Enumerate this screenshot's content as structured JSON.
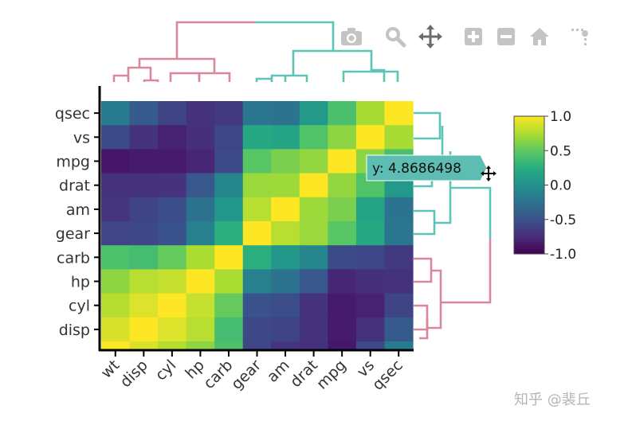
{
  "chart_data": {
    "type": "heatmap",
    "title": "",
    "xlabel": "",
    "ylabel": "",
    "x_categories": [
      "wt",
      "disp",
      "cyl",
      "hp",
      "carb",
      "gear",
      "am",
      "drat",
      "mpg",
      "vs",
      "qsec"
    ],
    "y_categories": [
      "disp",
      "cyl",
      "hp",
      "carb",
      "gear",
      "am",
      "drat",
      "mpg",
      "vs",
      "qsec"
    ],
    "rows": [
      {
        "label": "qsec",
        "values": [
          -0.17,
          -0.43,
          -0.59,
          -0.71,
          -0.66,
          -0.21,
          -0.23,
          0.09,
          0.42,
          0.74,
          1.0
        ]
      },
      {
        "label": "vs",
        "values": [
          -0.55,
          -0.71,
          -0.81,
          -0.72,
          -0.57,
          0.21,
          0.17,
          0.44,
          0.66,
          1.0,
          0.74
        ]
      },
      {
        "label": "mpg",
        "values": [
          -0.87,
          -0.85,
          -0.85,
          -0.78,
          -0.55,
          0.48,
          0.6,
          0.68,
          1.0,
          0.66,
          0.42
        ]
      },
      {
        "label": "drat",
        "values": [
          -0.71,
          -0.71,
          -0.7,
          -0.45,
          -0.09,
          0.7,
          0.71,
          1.0,
          0.68,
          0.44,
          0.09
        ]
      },
      {
        "label": "am",
        "values": [
          -0.69,
          -0.59,
          -0.52,
          -0.24,
          0.06,
          0.79,
          1.0,
          0.71,
          0.6,
          0.17,
          -0.23
        ]
      },
      {
        "label": "gear",
        "values": [
          -0.58,
          -0.56,
          -0.49,
          -0.13,
          0.27,
          1.0,
          0.79,
          0.7,
          0.48,
          0.21,
          -0.21
        ]
      },
      {
        "label": "carb",
        "values": [
          0.43,
          0.39,
          0.53,
          0.75,
          1.0,
          0.27,
          0.06,
          -0.09,
          -0.55,
          -0.57,
          -0.66
        ]
      },
      {
        "label": "hp",
        "values": [
          0.66,
          0.79,
          0.83,
          1.0,
          0.75,
          -0.13,
          -0.24,
          -0.45,
          -0.78,
          -0.72,
          -0.71
        ]
      },
      {
        "label": "cyl",
        "values": [
          0.78,
          0.9,
          1.0,
          0.83,
          0.53,
          -0.49,
          -0.52,
          -0.7,
          -0.85,
          -0.81,
          -0.59
        ]
      },
      {
        "label": "disp",
        "values": [
          0.89,
          1.0,
          0.9,
          0.79,
          0.39,
          -0.56,
          -0.59,
          -0.71,
          -0.85,
          -0.71,
          -0.43
        ]
      },
      {
        "label": "",
        "values": [
          1.0,
          0.89,
          0.78,
          0.66,
          0.43,
          -0.58,
          -0.69,
          -0.71,
          -0.87,
          -0.55,
          -0.17
        ]
      }
    ],
    "zlim": [
      -1.0,
      1.0
    ],
    "colorscale": "viridis",
    "colorbar": {
      "ticks": [
        "1.0",
        "0.5",
        "0.0",
        "-0.5",
        "-1.0"
      ]
    },
    "dendrogram_colors": {
      "cluster_a": "#d9879a",
      "cluster_b": "#5dc4b7"
    },
    "hover": {
      "text": "y: 4.8686498",
      "bg": "#5dbdb2"
    }
  },
  "modebar": {
    "buttons": [
      {
        "name": "camera-icon",
        "title": "Download plot as a png"
      },
      {
        "name": "zoom-icon",
        "title": "Zoom"
      },
      {
        "name": "pan-icon",
        "title": "Pan"
      },
      {
        "name": "zoom-in-icon",
        "title": "Zoom in"
      },
      {
        "name": "zoom-out-icon",
        "title": "Zoom out"
      },
      {
        "name": "home-icon",
        "title": "Reset axes"
      },
      {
        "name": "spike-lines-icon",
        "title": "Toggle Spike Lines"
      }
    ]
  },
  "watermark": "知乎 @裴丘"
}
